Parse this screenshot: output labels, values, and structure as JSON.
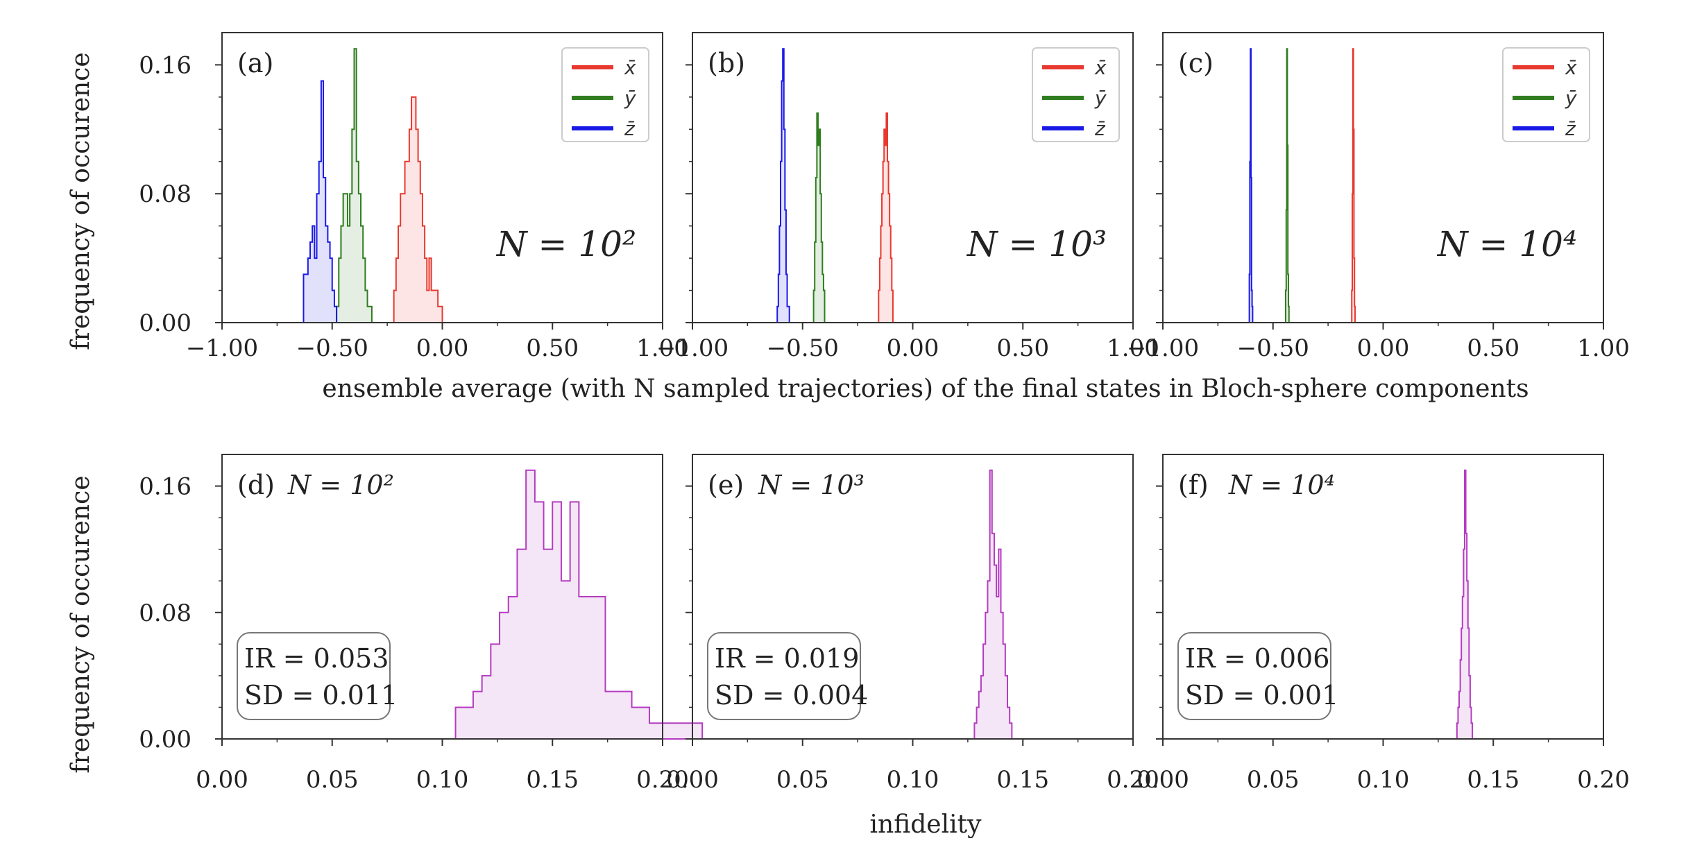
{
  "figure": {
    "ylabel": "frequency of occurence",
    "xlabel_top": "ensemble average (with N sampled trajectories) of the final states in Bloch-sphere components",
    "xlabel_bottom": "infidelity"
  },
  "colors": {
    "x": "#e8392f",
    "y": "#2f7d1f",
    "z": "#1a1ae6",
    "infidelity": "#b43cc0",
    "axis": "#333333"
  },
  "chart_data": [
    {
      "type": "histogram",
      "panel": "(a)",
      "annotation": "N = 10²",
      "xlim": [
        -1.0,
        1.0
      ],
      "ylim": [
        0,
        0.18
      ],
      "xticks": [
        "−1.00",
        "−0.50",
        "0.00",
        "0.50",
        "1.00"
      ],
      "yticks": [
        "0.00",
        "0.08",
        "0.16"
      ],
      "legend": {
        "position": "upper right",
        "entries": [
          "x̄",
          "ȳ",
          "z̄"
        ]
      },
      "series": [
        {
          "name": "x̄",
          "color": "#e8392f",
          "bin_start": -0.22,
          "bin_width": 0.01,
          "values": [
            0.02,
            0.04,
            0.06,
            0.08,
            0.08,
            0.1,
            0.1,
            0.12,
            0.14,
            0.14,
            0.12,
            0.1,
            0.08,
            0.06,
            0.04,
            0.02,
            0.04,
            0.02,
            0.02,
            0.02,
            0.01,
            0.01
          ]
        },
        {
          "name": "ȳ",
          "color": "#2f7d1f",
          "bin_start": -0.48,
          "bin_width": 0.01,
          "values": [
            0.01,
            0.04,
            0.06,
            0.08,
            0.08,
            0.06,
            0.08,
            0.12,
            0.17,
            0.1,
            0.08,
            0.06,
            0.04,
            0.02,
            0.01,
            0.01
          ]
        },
        {
          "name": "z̄",
          "color": "#1a1ae6",
          "bin_start": -0.63,
          "bin_width": 0.01,
          "values": [
            0.03,
            0.03,
            0.04,
            0.05,
            0.06,
            0.04,
            0.08,
            0.1,
            0.15,
            0.09,
            0.06,
            0.05,
            0.04,
            0.02,
            0.01
          ]
        }
      ]
    },
    {
      "type": "histogram",
      "panel": "(b)",
      "annotation": "N = 10³",
      "xlim": [
        -1.0,
        1.0
      ],
      "ylim": [
        0,
        0.18
      ],
      "xticks": [
        "−1.00",
        "−0.50",
        "0.00",
        "0.50",
        "1.00"
      ],
      "yticks": [
        "0.00",
        "0.08",
        "0.16"
      ],
      "legend": {
        "position": "upper right",
        "entries": [
          "x̄",
          "ȳ",
          "z̄"
        ]
      },
      "series": [
        {
          "name": "x̄",
          "color": "#e8392f",
          "bin_start": -0.155,
          "bin_width": 0.005,
          "values": [
            0.02,
            0.04,
            0.06,
            0.08,
            0.1,
            0.12,
            0.11,
            0.13,
            0.1,
            0.08,
            0.06,
            0.04,
            0.02
          ]
        },
        {
          "name": "ȳ",
          "color": "#2f7d1f",
          "bin_start": -0.45,
          "bin_width": 0.005,
          "values": [
            0.02,
            0.05,
            0.09,
            0.13,
            0.11,
            0.12,
            0.08,
            0.05,
            0.03,
            0.02
          ]
        },
        {
          "name": "z̄",
          "color": "#1a1ae6",
          "bin_start": -0.615,
          "bin_width": 0.005,
          "values": [
            0.01,
            0.03,
            0.06,
            0.1,
            0.15,
            0.17,
            0.12,
            0.07,
            0.03,
            0.01,
            0.01
          ]
        }
      ]
    },
    {
      "type": "histogram",
      "panel": "(c)",
      "annotation": "N = 10⁴",
      "xlim": [
        -1.0,
        1.0
      ],
      "ylim": [
        0,
        0.18
      ],
      "xticks": [
        "−1.00",
        "−0.50",
        "0.00",
        "0.50",
        "1.00"
      ],
      "yticks": [
        "0.00",
        "0.08",
        "0.16"
      ],
      "legend": {
        "position": "upper right",
        "entries": [
          "x̄",
          "ȳ",
          "z̄"
        ]
      },
      "series": [
        {
          "name": "x̄",
          "color": "#e8392f",
          "bin_start": -0.1425,
          "bin_width": 0.0025,
          "values": [
            0.02,
            0.08,
            0.17,
            0.12,
            0.04,
            0.01
          ]
        },
        {
          "name": "ȳ",
          "color": "#2f7d1f",
          "bin_start": -0.4425,
          "bin_width": 0.0025,
          "values": [
            0.02,
            0.07,
            0.17,
            0.11,
            0.03,
            0.01
          ]
        },
        {
          "name": "z̄",
          "color": "#1a1ae6",
          "bin_start": -0.6075,
          "bin_width": 0.0025,
          "values": [
            0.03,
            0.1,
            0.17,
            0.09,
            0.02,
            0.01
          ]
        }
      ]
    },
    {
      "type": "histogram",
      "panel": "(d)",
      "annotation": "N = 10²",
      "xlim": [
        0.0,
        0.2
      ],
      "ylim": [
        0,
        0.18
      ],
      "xticks": [
        "0.00",
        "0.05",
        "0.10",
        "0.15",
        "0.20"
      ],
      "yticks": [
        "0.00",
        "0.08",
        "0.16"
      ],
      "stats": {
        "IR": "IR = 0.053",
        "SD": "SD = 0.011"
      },
      "series": [
        {
          "name": "",
          "color": "#b43cc0",
          "bin_start": 0.106,
          "bin_width": 0.004,
          "values": [
            0.02,
            0.02,
            0.03,
            0.04,
            0.06,
            0.08,
            0.09,
            0.12,
            0.17,
            0.15,
            0.12,
            0.15,
            0.1,
            0.15,
            0.09,
            0.09,
            0.09,
            0.03,
            0.03,
            0.03,
            0.02,
            0.02,
            0.01,
            0.01,
            0.01,
            0.01,
            0.01,
            0.01
          ]
        }
      ]
    },
    {
      "type": "histogram",
      "panel": "(e)",
      "annotation": "N = 10³",
      "xlim": [
        0.0,
        0.2
      ],
      "ylim": [
        0,
        0.18
      ],
      "xticks": [
        "0.00",
        "0.05",
        "0.10",
        "0.15",
        "0.20"
      ],
      "yticks": [
        "0.00",
        "0.08",
        "0.16"
      ],
      "stats": {
        "IR": "IR = 0.019",
        "SD": "SD = 0.004"
      },
      "series": [
        {
          "name": "",
          "color": "#b43cc0",
          "bin_start": 0.128,
          "bin_width": 0.001,
          "values": [
            0.01,
            0.02,
            0.03,
            0.04,
            0.06,
            0.08,
            0.1,
            0.17,
            0.13,
            0.11,
            0.09,
            0.12,
            0.08,
            0.06,
            0.04,
            0.02,
            0.01
          ]
        }
      ]
    },
    {
      "type": "histogram",
      "panel": "(f)",
      "annotation": "N = 10⁴",
      "xlim": [
        0.0,
        0.2
      ],
      "ylim": [
        0,
        0.18
      ],
      "xticks": [
        "0.00",
        "0.05",
        "0.10",
        "0.15",
        "0.20"
      ],
      "yticks": [
        "0.00",
        "0.08",
        "0.16"
      ],
      "stats": {
        "IR": "IR = 0.006",
        "SD": "SD = 0.001"
      },
      "series": [
        {
          "name": "",
          "color": "#b43cc0",
          "bin_start": 0.1335,
          "bin_width": 0.0005,
          "values": [
            0.01,
            0.02,
            0.03,
            0.05,
            0.07,
            0.09,
            0.12,
            0.17,
            0.13,
            0.1,
            0.07,
            0.04,
            0.02,
            0.01
          ]
        }
      ]
    }
  ]
}
